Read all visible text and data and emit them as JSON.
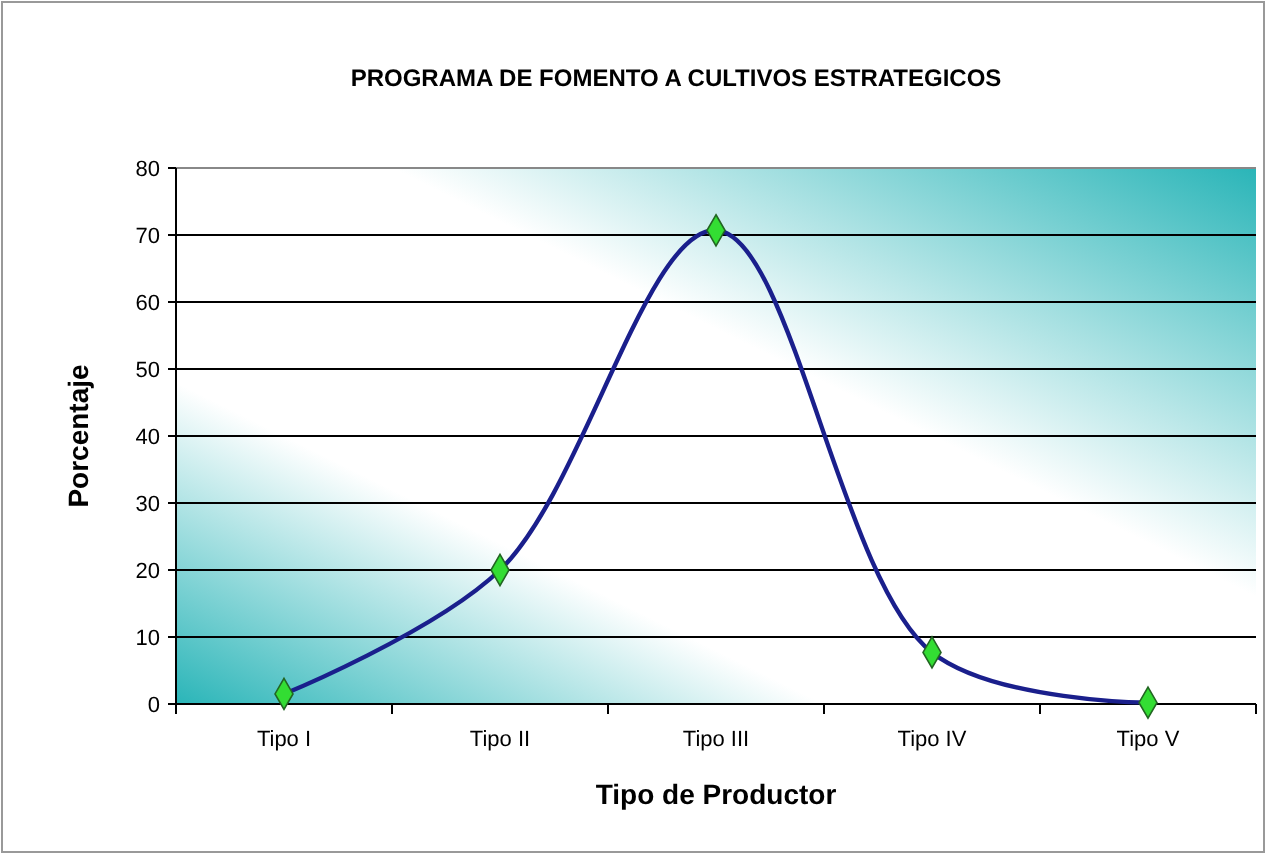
{
  "chart_data": {
    "type": "line",
    "title": "PROGRAMA DE FOMENTO A CULTIVOS ESTRATEGICOS",
    "xlabel": "Tipo de Productor",
    "ylabel": "Porcentaje",
    "categories": [
      "Tipo I",
      "Tipo II",
      "Tipo III",
      "Tipo IV",
      "Tipo V"
    ],
    "series": [
      {
        "color": "#1a1f8c",
        "values": [
          1.5,
          20,
          70.7,
          7.7,
          0.2
        ]
      }
    ],
    "ylim": [
      0,
      80
    ],
    "yticks": [
      0,
      10,
      20,
      30,
      40,
      50,
      60,
      70,
      80
    ],
    "grid": "y",
    "marker": "diamond",
    "line_style": "solid"
  }
}
